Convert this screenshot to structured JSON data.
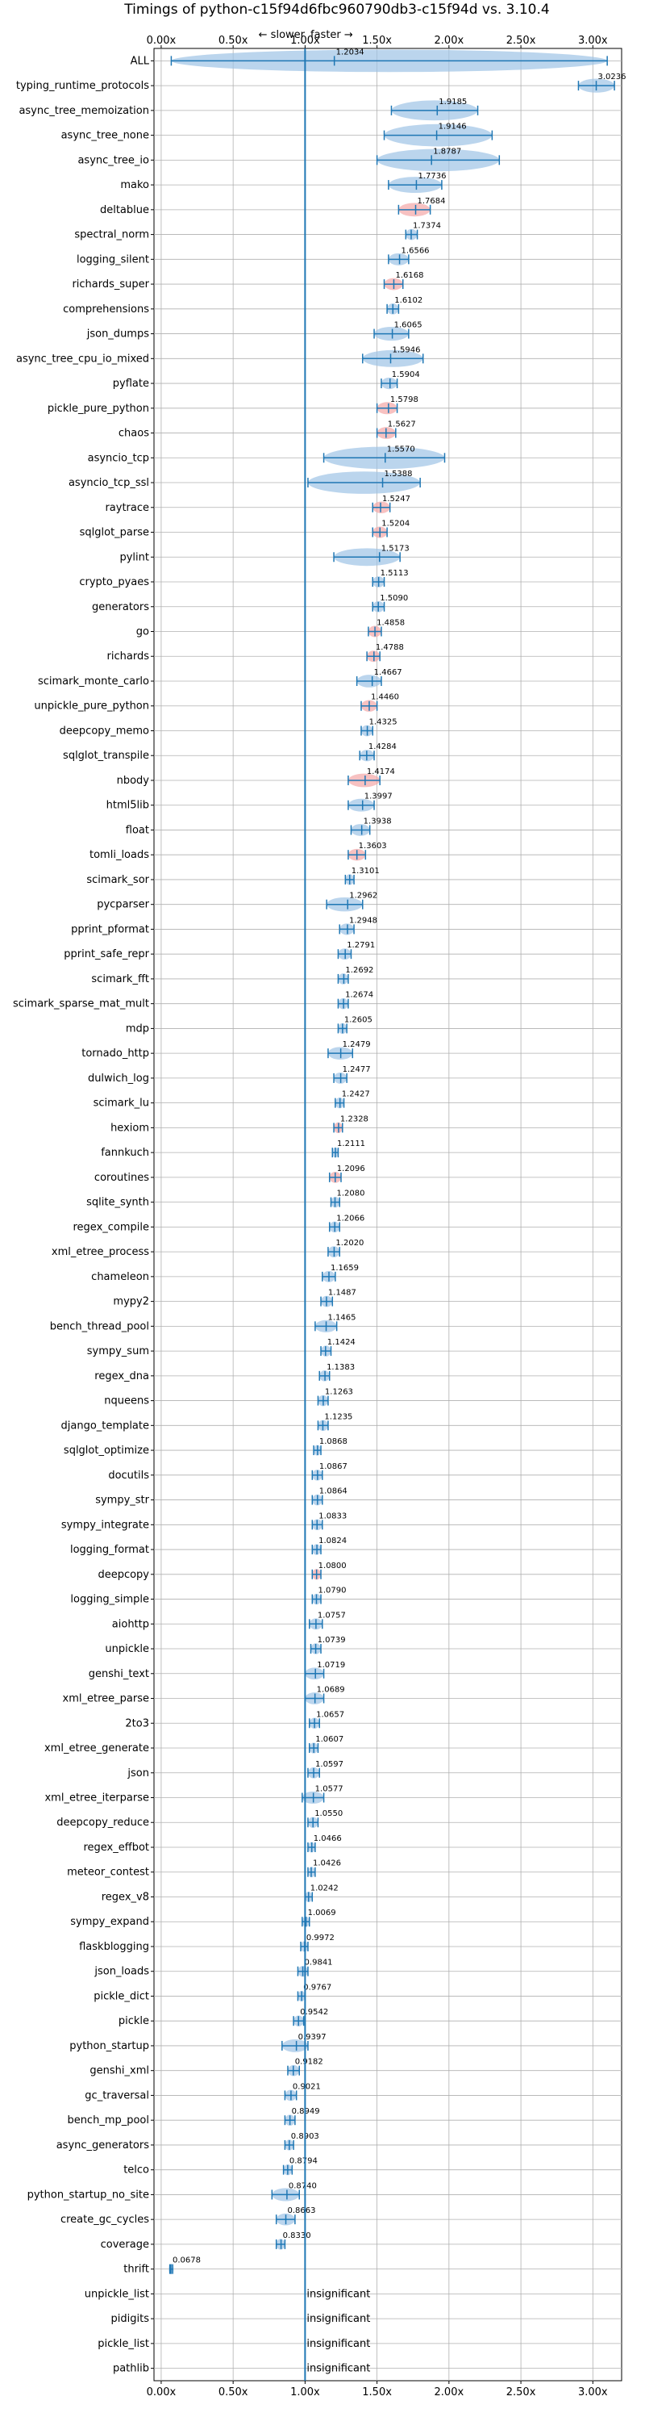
{
  "chart_data": {
    "type": "violin",
    "title": "Timings of python-c15f94d6fbc960790db3-c15f94d vs. 3.10.4",
    "direction": {
      "slower": "← slower",
      "faster": "faster →"
    },
    "x_ticks": [
      "0.00x",
      "0.50x",
      "1.00x",
      "1.50x",
      "2.00x",
      "2.50x",
      "3.00x"
    ],
    "xlim": [
      -0.05,
      3.2
    ],
    "reference_line": 1.0,
    "grid": true,
    "insignificant_label": "insignificant",
    "benchmarks": [
      {
        "name": "ALL",
        "value": 1.2034,
        "label": "1.2034",
        "lo": 0.07,
        "hi": 3.1
      },
      {
        "name": "typing_runtime_protocols",
        "value": 3.0236,
        "label": "3.0236",
        "lo": 2.9,
        "hi": 3.15
      },
      {
        "name": "async_tree_memoization",
        "value": 1.9185,
        "label": "1.9185",
        "lo": 1.6,
        "hi": 2.2
      },
      {
        "name": "async_tree_none",
        "value": 1.9146,
        "label": "1.9146",
        "lo": 1.55,
        "hi": 2.3
      },
      {
        "name": "async_tree_io",
        "value": 1.8787,
        "label": "1.8787",
        "lo": 1.5,
        "hi": 2.35
      },
      {
        "name": "mako",
        "value": 1.7736,
        "label": "1.7736",
        "lo": 1.58,
        "hi": 1.95
      },
      {
        "name": "deltablue",
        "value": 1.7684,
        "label": "1.7684",
        "lo": 1.65,
        "hi": 1.87,
        "color": "red"
      },
      {
        "name": "spectral_norm",
        "value": 1.7374,
        "label": "1.7374",
        "lo": 1.7,
        "hi": 1.78
      },
      {
        "name": "logging_silent",
        "value": 1.6566,
        "label": "1.6566",
        "lo": 1.58,
        "hi": 1.72
      },
      {
        "name": "richards_super",
        "value": 1.6168,
        "label": "1.6168",
        "lo": 1.55,
        "hi": 1.68,
        "color": "red"
      },
      {
        "name": "comprehensions",
        "value": 1.6102,
        "label": "1.6102",
        "lo": 1.57,
        "hi": 1.65
      },
      {
        "name": "json_dumps",
        "value": 1.6065,
        "label": "1.6065",
        "lo": 1.48,
        "hi": 1.72
      },
      {
        "name": "async_tree_cpu_io_mixed",
        "value": 1.5946,
        "label": "1.5946",
        "lo": 1.4,
        "hi": 1.82
      },
      {
        "name": "pyflate",
        "value": 1.5904,
        "label": "1.5904",
        "lo": 1.53,
        "hi": 1.64
      },
      {
        "name": "pickle_pure_python",
        "value": 1.5798,
        "label": "1.5798",
        "lo": 1.5,
        "hi": 1.64,
        "color": "red"
      },
      {
        "name": "chaos",
        "value": 1.5627,
        "label": "1.5627",
        "lo": 1.5,
        "hi": 1.63,
        "color": "red"
      },
      {
        "name": "asyncio_tcp",
        "value": 1.557,
        "label": "1.5570",
        "lo": 1.13,
        "hi": 1.97
      },
      {
        "name": "asyncio_tcp_ssl",
        "value": 1.5388,
        "label": "1.5388",
        "lo": 1.02,
        "hi": 1.8
      },
      {
        "name": "raytrace",
        "value": 1.5247,
        "label": "1.5247",
        "lo": 1.47,
        "hi": 1.59,
        "color": "red"
      },
      {
        "name": "sqlglot_parse",
        "value": 1.5204,
        "label": "1.5204",
        "lo": 1.47,
        "hi": 1.57,
        "color": "red"
      },
      {
        "name": "pylint",
        "value": 1.5173,
        "label": "1.5173",
        "lo": 1.2,
        "hi": 1.66
      },
      {
        "name": "crypto_pyaes",
        "value": 1.5113,
        "label": "1.5113",
        "lo": 1.47,
        "hi": 1.55
      },
      {
        "name": "generators",
        "value": 1.509,
        "label": "1.5090",
        "lo": 1.47,
        "hi": 1.55
      },
      {
        "name": "go",
        "value": 1.4858,
        "label": "1.4858",
        "lo": 1.44,
        "hi": 1.53,
        "color": "red"
      },
      {
        "name": "richards",
        "value": 1.4788,
        "label": "1.4788",
        "lo": 1.43,
        "hi": 1.52,
        "color": "red"
      },
      {
        "name": "scimark_monte_carlo",
        "value": 1.4667,
        "label": "1.4667",
        "lo": 1.36,
        "hi": 1.53
      },
      {
        "name": "unpickle_pure_python",
        "value": 1.446,
        "label": "1.4460",
        "lo": 1.39,
        "hi": 1.5,
        "color": "red"
      },
      {
        "name": "deepcopy_memo",
        "value": 1.4325,
        "label": "1.4325",
        "lo": 1.39,
        "hi": 1.47
      },
      {
        "name": "sqlglot_transpile",
        "value": 1.4284,
        "label": "1.4284",
        "lo": 1.38,
        "hi": 1.48
      },
      {
        "name": "nbody",
        "value": 1.4174,
        "label": "1.4174",
        "lo": 1.3,
        "hi": 1.52,
        "color": "red"
      },
      {
        "name": "html5lib",
        "value": 1.3997,
        "label": "1.3997",
        "lo": 1.3,
        "hi": 1.48
      },
      {
        "name": "float",
        "value": 1.3938,
        "label": "1.3938",
        "lo": 1.32,
        "hi": 1.45
      },
      {
        "name": "tomli_loads",
        "value": 1.3603,
        "label": "1.3603",
        "lo": 1.3,
        "hi": 1.42,
        "color": "red"
      },
      {
        "name": "scimark_sor",
        "value": 1.3101,
        "label": "1.3101",
        "lo": 1.28,
        "hi": 1.34
      },
      {
        "name": "pycparser",
        "value": 1.2962,
        "label": "1.2962",
        "lo": 1.15,
        "hi": 1.4
      },
      {
        "name": "pprint_pformat",
        "value": 1.2948,
        "label": "1.2948",
        "lo": 1.24,
        "hi": 1.34
      },
      {
        "name": "pprint_safe_repr",
        "value": 1.2791,
        "label": "1.2791",
        "lo": 1.23,
        "hi": 1.32
      },
      {
        "name": "scimark_fft",
        "value": 1.2692,
        "label": "1.2692",
        "lo": 1.23,
        "hi": 1.3
      },
      {
        "name": "scimark_sparse_mat_mult",
        "value": 1.2674,
        "label": "1.2674",
        "lo": 1.23,
        "hi": 1.3
      },
      {
        "name": "mdp",
        "value": 1.2605,
        "label": "1.2605",
        "lo": 1.23,
        "hi": 1.29
      },
      {
        "name": "tornado_http",
        "value": 1.2479,
        "label": "1.2479",
        "lo": 1.16,
        "hi": 1.33
      },
      {
        "name": "dulwich_log",
        "value": 1.2477,
        "label": "1.2477",
        "lo": 1.2,
        "hi": 1.29
      },
      {
        "name": "scimark_lu",
        "value": 1.2427,
        "label": "1.2427",
        "lo": 1.21,
        "hi": 1.27
      },
      {
        "name": "hexiom",
        "value": 1.2328,
        "label": "1.2328",
        "lo": 1.2,
        "hi": 1.26,
        "color": "red"
      },
      {
        "name": "fannkuch",
        "value": 1.2111,
        "label": "1.2111",
        "lo": 1.19,
        "hi": 1.23
      },
      {
        "name": "coroutines",
        "value": 1.2096,
        "label": "1.2096",
        "lo": 1.17,
        "hi": 1.25,
        "color": "red"
      },
      {
        "name": "sqlite_synth",
        "value": 1.208,
        "label": "1.2080",
        "lo": 1.18,
        "hi": 1.24
      },
      {
        "name": "regex_compile",
        "value": 1.2066,
        "label": "1.2066",
        "lo": 1.17,
        "hi": 1.24
      },
      {
        "name": "xml_etree_process",
        "value": 1.202,
        "label": "1.2020",
        "lo": 1.16,
        "hi": 1.24
      },
      {
        "name": "chameleon",
        "value": 1.1659,
        "label": "1.1659",
        "lo": 1.12,
        "hi": 1.21
      },
      {
        "name": "mypy2",
        "value": 1.1487,
        "label": "1.1487",
        "lo": 1.11,
        "hi": 1.19
      },
      {
        "name": "bench_thread_pool",
        "value": 1.1465,
        "label": "1.1465",
        "lo": 1.07,
        "hi": 1.22
      },
      {
        "name": "sympy_sum",
        "value": 1.1424,
        "label": "1.1424",
        "lo": 1.11,
        "hi": 1.18
      },
      {
        "name": "regex_dna",
        "value": 1.1383,
        "label": "1.1383",
        "lo": 1.1,
        "hi": 1.17
      },
      {
        "name": "nqueens",
        "value": 1.1263,
        "label": "1.1263",
        "lo": 1.09,
        "hi": 1.16
      },
      {
        "name": "django_template",
        "value": 1.1235,
        "label": "1.1235",
        "lo": 1.09,
        "hi": 1.16
      },
      {
        "name": "sqlglot_optimize",
        "value": 1.0868,
        "label": "1.0868",
        "lo": 1.06,
        "hi": 1.11
      },
      {
        "name": "docutils",
        "value": 1.0867,
        "label": "1.0867",
        "lo": 1.05,
        "hi": 1.12
      },
      {
        "name": "sympy_str",
        "value": 1.0864,
        "label": "1.0864",
        "lo": 1.05,
        "hi": 1.12
      },
      {
        "name": "sympy_integrate",
        "value": 1.0833,
        "label": "1.0833",
        "lo": 1.05,
        "hi": 1.12
      },
      {
        "name": "logging_format",
        "value": 1.0824,
        "label": "1.0824",
        "lo": 1.05,
        "hi": 1.11
      },
      {
        "name": "deepcopy",
        "value": 1.08,
        "label": "1.0800",
        "lo": 1.05,
        "hi": 1.11,
        "color": "red"
      },
      {
        "name": "logging_simple",
        "value": 1.079,
        "label": "1.0790",
        "lo": 1.05,
        "hi": 1.11
      },
      {
        "name": "aiohttp",
        "value": 1.0757,
        "label": "1.0757",
        "lo": 1.03,
        "hi": 1.12
      },
      {
        "name": "unpickle",
        "value": 1.0739,
        "label": "1.0739",
        "lo": 1.04,
        "hi": 1.11
      },
      {
        "name": "genshi_text",
        "value": 1.0719,
        "label": "1.0719",
        "lo": 1.0,
        "hi": 1.13
      },
      {
        "name": "xml_etree_parse",
        "value": 1.0689,
        "label": "1.0689",
        "lo": 1.0,
        "hi": 1.13
      },
      {
        "name": "2to3",
        "value": 1.0657,
        "label": "1.0657",
        "lo": 1.03,
        "hi": 1.1
      },
      {
        "name": "xml_etree_generate",
        "value": 1.0607,
        "label": "1.0607",
        "lo": 1.03,
        "hi": 1.09
      },
      {
        "name": "json",
        "value": 1.0597,
        "label": "1.0597",
        "lo": 1.02,
        "hi": 1.1
      },
      {
        "name": "xml_etree_iterparse",
        "value": 1.0577,
        "label": "1.0577",
        "lo": 0.98,
        "hi": 1.13
      },
      {
        "name": "deepcopy_reduce",
        "value": 1.055,
        "label": "1.0550",
        "lo": 1.02,
        "hi": 1.09
      },
      {
        "name": "regex_effbot",
        "value": 1.0466,
        "label": "1.0466",
        "lo": 1.02,
        "hi": 1.07
      },
      {
        "name": "meteor_contest",
        "value": 1.0426,
        "label": "1.0426",
        "lo": 1.02,
        "hi": 1.07
      },
      {
        "name": "regex_v8",
        "value": 1.0242,
        "label": "1.0242",
        "lo": 1.0,
        "hi": 1.05
      },
      {
        "name": "sympy_expand",
        "value": 1.0069,
        "label": "1.0069",
        "lo": 0.98,
        "hi": 1.03
      },
      {
        "name": "flaskblogging",
        "value": 0.9972,
        "label": "0.9972",
        "lo": 0.97,
        "hi": 1.02
      },
      {
        "name": "json_loads",
        "value": 0.9841,
        "label": "0.9841",
        "lo": 0.95,
        "hi": 1.02
      },
      {
        "name": "pickle_dict",
        "value": 0.9767,
        "label": "0.9767",
        "lo": 0.95,
        "hi": 1.0
      },
      {
        "name": "pickle",
        "value": 0.9542,
        "label": "0.9542",
        "lo": 0.92,
        "hi": 0.99
      },
      {
        "name": "python_startup",
        "value": 0.9397,
        "label": "0.9397",
        "lo": 0.84,
        "hi": 1.02
      },
      {
        "name": "genshi_xml",
        "value": 0.9182,
        "label": "0.9182",
        "lo": 0.88,
        "hi": 0.96
      },
      {
        "name": "gc_traversal",
        "value": 0.9021,
        "label": "0.9021",
        "lo": 0.86,
        "hi": 0.94
      },
      {
        "name": "bench_mp_pool",
        "value": 0.8949,
        "label": "0.8949",
        "lo": 0.86,
        "hi": 0.93
      },
      {
        "name": "async_generators",
        "value": 0.8903,
        "label": "0.8903",
        "lo": 0.86,
        "hi": 0.92
      },
      {
        "name": "telco",
        "value": 0.8794,
        "label": "0.8794",
        "lo": 0.85,
        "hi": 0.91
      },
      {
        "name": "python_startup_no_site",
        "value": 0.874,
        "label": "0.8740",
        "lo": 0.77,
        "hi": 0.96
      },
      {
        "name": "create_gc_cycles",
        "value": 0.8663,
        "label": "0.8663",
        "lo": 0.8,
        "hi": 0.93
      },
      {
        "name": "coverage",
        "value": 0.833,
        "label": "0.8330",
        "lo": 0.8,
        "hi": 0.86
      },
      {
        "name": "thrift",
        "value": 0.0678,
        "label": "0.0678",
        "lo": 0.06,
        "hi": 0.08
      },
      {
        "name": "unpickle_list",
        "insignificant": true
      },
      {
        "name": "pidigits",
        "insignificant": true
      },
      {
        "name": "pickle_list",
        "insignificant": true
      },
      {
        "name": "pathlib",
        "insignificant": true
      }
    ]
  }
}
